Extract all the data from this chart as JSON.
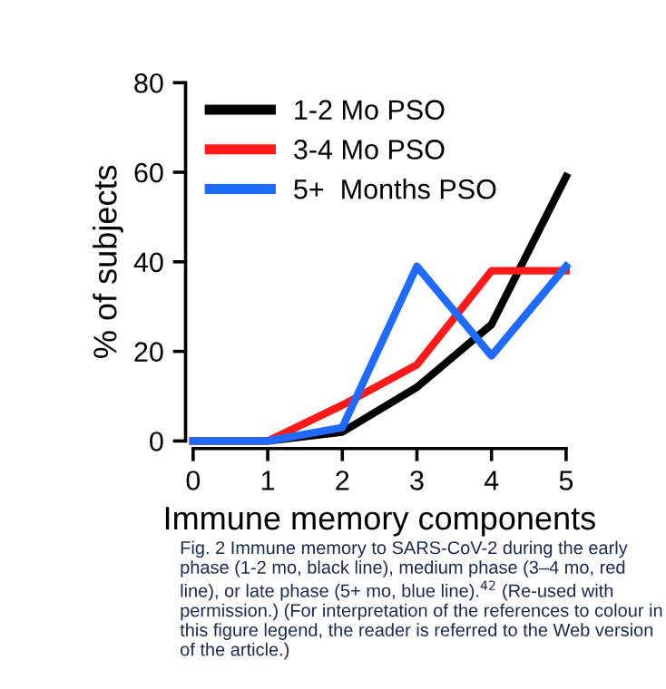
{
  "chart_data": {
    "type": "line",
    "xlabel": "Immune memory components",
    "ylabel": "% of subjects",
    "x": [
      0,
      1,
      2,
      3,
      4,
      5
    ],
    "series": [
      {
        "name": "1-2 Mo PSO",
        "color": "#000000",
        "values": [
          0,
          0,
          2,
          12,
          26,
          59
        ]
      },
      {
        "name": "3-4 Mo PSO",
        "color": "#ff1a1a",
        "values": [
          0,
          0,
          8,
          17,
          38,
          38
        ]
      },
      {
        "name": "5+  Months PSO",
        "color": "#1f6bff",
        "values": [
          0,
          0,
          3,
          39,
          19,
          39
        ]
      }
    ],
    "xlim": [
      0,
      5
    ],
    "xticks": [
      0,
      1,
      2,
      3,
      4,
      5
    ],
    "ylim": [
      0,
      80
    ],
    "yticks": [
      0,
      20,
      40,
      60,
      80
    ],
    "grid": false,
    "legend": "top left",
    "marker": "none",
    "line_style": "solid",
    "annotations": [
      "Fig. 2 Immune memory to SARS-CoV-2 during the early phase (1-2 mo, black line), medium phase (3–4 mo, red line), or late phase (5+ mo, blue line).$^{42}$ (Re-used with permission.) (For interpretation of the references to colour in this figure legend, the reader is referred to the Web version of the article.)"
    ]
  }
}
